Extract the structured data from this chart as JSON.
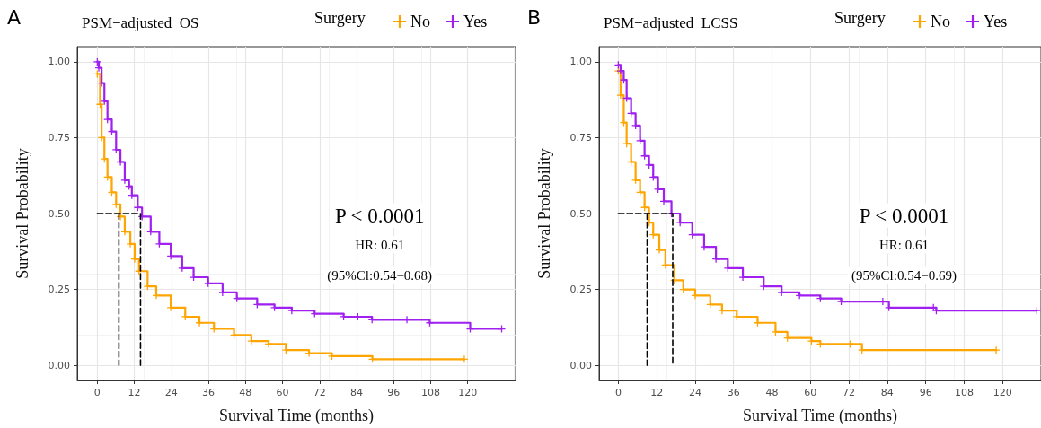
{
  "chart_data": [
    {
      "type": "step",
      "title": "PSM−adjusted  OS",
      "xlabel": "Survival Time (months)",
      "ylabel": "Survival Probability",
      "legend_title": "Surgery",
      "legend": "top right",
      "grid": true,
      "marker": "cross",
      "annotations": [
        "A",
        "P < 0.0001",
        "HR: 0.61",
        "(95%Cl:0.54−0.68)"
      ],
      "xlim": [
        -6.5,
        135.5
      ],
      "xticks": [
        0,
        12,
        24,
        36,
        48,
        60,
        72,
        84,
        96,
        108,
        120
      ],
      "ylim": [
        -0.05,
        1.05
      ],
      "yticks": [
        {
          "value": 0,
          "label": "0.00"
        },
        {
          "value": 0.25,
          "label": "0.25"
        },
        {
          "value": 0.5,
          "label": "0.50"
        },
        {
          "value": 0.75,
          "label": "0.75"
        },
        {
          "value": 1,
          "label": "1.00"
        }
      ],
      "series": [
        {
          "name": "No",
          "color": "#ffa500",
          "x": [
            0,
            0.9,
            1.4,
            2.3,
            3.3,
            4.7,
            6.1,
            7.5,
            8.9,
            10.7,
            12.1,
            13.5,
            16.3,
            19.1,
            23.8,
            28.5,
            33.1,
            37.8,
            44.3,
            49.9,
            55.5,
            61.1,
            68.6,
            76,
            89.1,
            118.9
          ],
          "values": [
            0.96,
            0.86,
            0.75,
            0.68,
            0.62,
            0.57,
            0.53,
            0.49,
            0.44,
            0.4,
            0.35,
            0.31,
            0.26,
            0.23,
            0.19,
            0.16,
            0.14,
            0.12,
            0.1,
            0.08,
            0.07,
            0.05,
            0.04,
            0.03,
            0.02,
            0.02
          ]
        },
        {
          "name": "Yes",
          "color": "#a020f0",
          "x": [
            0,
            0.5,
            1.4,
            2.3,
            3.3,
            4.7,
            6.1,
            7.5,
            8.9,
            10.3,
            11.2,
            13.1,
            14.5,
            17.3,
            20.1,
            23.8,
            27.5,
            31.2,
            35.9,
            40.6,
            45.2,
            51.8,
            57.4,
            63,
            70.4,
            79.8,
            84.4,
            89,
            100.3,
            107.7,
            120.8,
            131
          ],
          "values": [
            1,
            0.98,
            0.93,
            0.87,
            0.81,
            0.77,
            0.71,
            0.67,
            0.61,
            0.59,
            0.56,
            0.52,
            0.49,
            0.44,
            0.4,
            0.36,
            0.32,
            0.29,
            0.27,
            0.24,
            0.22,
            0.2,
            0.19,
            0.18,
            0.17,
            0.16,
            0.16,
            0.15,
            0.15,
            0.14,
            0.12,
            0.12
          ]
        },
        {
          "type": "line",
          "color": "#000000",
          "line_style": "dashed",
          "marker": "none",
          "x": [
            0,
            14,
            14
          ],
          "values": [
            0.5,
            0.5,
            0
          ]
        },
        {
          "type": "line",
          "color": "#000000",
          "line_style": "dashed",
          "marker": "none",
          "x": [
            7,
            7
          ],
          "values": [
            0.5,
            0
          ]
        }
      ]
    },
    {
      "type": "step",
      "title": "PSM−adjusted  LCSS",
      "xlabel": "Survival Time (months)",
      "ylabel": "Survival Probability",
      "legend_title": "Surgery",
      "legend": "top right",
      "grid": true,
      "marker": "cross",
      "annotations": [
        "B",
        "P < 0.0001",
        "HR: 0.61",
        "(95%Cl:0.54−0.69)"
      ],
      "xlim": [
        -6,
        132
      ],
      "xticks": [
        0,
        12,
        24,
        36,
        48,
        60,
        72,
        84,
        96,
        108,
        120
      ],
      "ylim": [
        -0.05,
        1.05
      ],
      "yticks": [
        {
          "value": 0,
          "label": "0.00"
        },
        {
          "value": 0.25,
          "label": "0.25"
        },
        {
          "value": 0.5,
          "label": "0.50"
        },
        {
          "value": 0.75,
          "label": "0.75"
        },
        {
          "value": 1,
          "label": "1.00"
        }
      ],
      "series": [
        {
          "name": "No",
          "color": "#ffa500",
          "x": [
            0,
            0.7,
            1.7,
            2.6,
            4,
            5.4,
            6.8,
            8.2,
            9.6,
            10.9,
            12.8,
            14.7,
            17.5,
            20.3,
            24,
            28.7,
            32.4,
            37,
            43.5,
            49.1,
            52.8,
            60.3,
            63.1,
            72.4,
            76.1,
            118
          ],
          "values": [
            0.97,
            0.89,
            0.8,
            0.73,
            0.67,
            0.61,
            0.57,
            0.52,
            0.47,
            0.43,
            0.38,
            0.33,
            0.28,
            0.25,
            0.23,
            0.2,
            0.18,
            0.16,
            0.14,
            0.11,
            0.09,
            0.08,
            0.07,
            0.07,
            0.05,
            0.05
          ]
        },
        {
          "name": "Yes",
          "color": "#a020f0",
          "x": [
            0,
            0.7,
            1.7,
            2.6,
            4,
            5.4,
            6.8,
            8.2,
            9.6,
            10.9,
            12.4,
            14.2,
            16.6,
            19.3,
            23.1,
            26.8,
            30.5,
            34.2,
            38.9,
            45.4,
            51,
            56.6,
            63.1,
            69.6,
            82.6,
            84.5,
            98.4,
            99.3,
            130.7
          ],
          "values": [
            0.99,
            0.97,
            0.94,
            0.88,
            0.83,
            0.79,
            0.74,
            0.69,
            0.66,
            0.62,
            0.58,
            0.54,
            0.5,
            0.47,
            0.43,
            0.39,
            0.35,
            0.32,
            0.29,
            0.26,
            0.24,
            0.23,
            0.22,
            0.21,
            0.21,
            0.19,
            0.19,
            0.18,
            0.18
          ]
        },
        {
          "type": "line",
          "color": "#000000",
          "line_style": "dashed",
          "marker": "none",
          "x": [
            0,
            17,
            17
          ],
          "values": [
            0.5,
            0.5,
            0
          ]
        },
        {
          "type": "line",
          "color": "#000000",
          "line_style": "dashed",
          "marker": "none",
          "x": [
            9,
            9
          ],
          "values": [
            0.5,
            0
          ]
        }
      ]
    }
  ]
}
